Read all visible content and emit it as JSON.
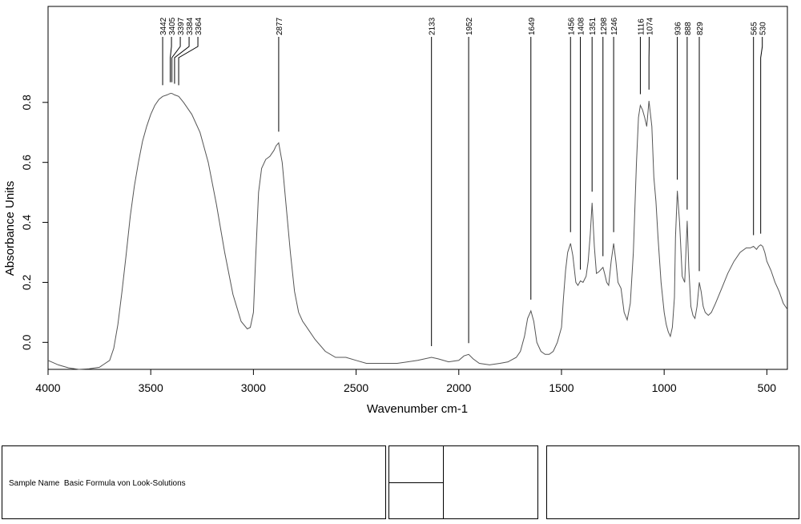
{
  "chart_data": {
    "type": "line",
    "xlabel": "Wavenumber cm-1",
    "ylabel": "Absorbance Units",
    "xlim": [
      4000,
      400
    ],
    "ylim": [
      -0.09,
      1.12
    ],
    "x_ticks": [
      4000,
      3500,
      3000,
      2500,
      2000,
      1500,
      1000,
      500
    ],
    "y_ticks": [
      0.0,
      0.2,
      0.4,
      0.6,
      0.8
    ],
    "x_tick_labels": [
      "4000",
      "3500",
      "3000",
      "2500",
      "2000",
      "1500",
      "1000",
      "500"
    ],
    "y_tick_labels": [
      "0.0",
      "0.2",
      "0.4",
      "0.6",
      "0.8"
    ],
    "grid": false,
    "line_color": "#555555",
    "series": [
      {
        "x": [
          4000,
          3950,
          3900,
          3850,
          3800,
          3750,
          3700,
          3680,
          3660,
          3640,
          3620,
          3600,
          3580,
          3560,
          3540,
          3520,
          3500,
          3480,
          3460,
          3442,
          3420,
          3405,
          3397,
          3384,
          3364,
          3340,
          3300,
          3260,
          3220,
          3180,
          3140,
          3100,
          3060,
          3030,
          3015,
          3000,
          2990,
          2975,
          2960,
          2940,
          2920,
          2900,
          2890,
          2877,
          2860,
          2840,
          2820,
          2800,
          2780,
          2760,
          2750,
          2730,
          2700,
          2650,
          2600,
          2550,
          2500,
          2450,
          2400,
          2300,
          2200,
          2133,
          2100,
          2050,
          2000,
          1975,
          1952,
          1930,
          1900,
          1850,
          1800,
          1760,
          1720,
          1700,
          1680,
          1665,
          1649,
          1635,
          1620,
          1600,
          1580,
          1560,
          1540,
          1520,
          1500,
          1490,
          1480,
          1470,
          1456,
          1445,
          1430,
          1420,
          1408,
          1395,
          1380,
          1370,
          1360,
          1351,
          1340,
          1330,
          1318,
          1305,
          1298,
          1290,
          1280,
          1270,
          1258,
          1246,
          1235,
          1225,
          1210,
          1195,
          1180,
          1165,
          1150,
          1135,
          1125,
          1116,
          1105,
          1095,
          1085,
          1074,
          1060,
          1050,
          1040,
          1030,
          1015,
          1000,
          990,
          980,
          970,
          960,
          950,
          945,
          936,
          925,
          912,
          900,
          888,
          880,
          870,
          860,
          850,
          840,
          829,
          820,
          810,
          800,
          785,
          770,
          750,
          720,
          690,
          660,
          630,
          600,
          580,
          565,
          550,
          540,
          530,
          520,
          510,
          500,
          480,
          460,
          440,
          420,
          400
        ],
        "y": [
          -0.06,
          -0.075,
          -0.085,
          -0.09,
          -0.088,
          -0.083,
          -0.06,
          -0.02,
          0.06,
          0.17,
          0.29,
          0.42,
          0.52,
          0.6,
          0.67,
          0.72,
          0.76,
          0.79,
          0.81,
          0.82,
          0.825,
          0.83,
          0.83,
          0.825,
          0.82,
          0.8,
          0.76,
          0.7,
          0.6,
          0.46,
          0.3,
          0.16,
          0.07,
          0.045,
          0.05,
          0.1,
          0.27,
          0.5,
          0.58,
          0.61,
          0.62,
          0.64,
          0.655,
          0.665,
          0.6,
          0.45,
          0.3,
          0.17,
          0.1,
          0.07,
          0.06,
          0.04,
          0.01,
          -0.03,
          -0.05,
          -0.05,
          -0.06,
          -0.07,
          -0.07,
          -0.07,
          -0.06,
          -0.05,
          -0.055,
          -0.065,
          -0.06,
          -0.045,
          -0.04,
          -0.055,
          -0.07,
          -0.075,
          -0.07,
          -0.065,
          -0.05,
          -0.03,
          0.02,
          0.08,
          0.105,
          0.07,
          0.0,
          -0.03,
          -0.04,
          -0.04,
          -0.03,
          0.0,
          0.05,
          0.15,
          0.24,
          0.3,
          0.33,
          0.29,
          0.2,
          0.19,
          0.205,
          0.2,
          0.22,
          0.27,
          0.36,
          0.465,
          0.32,
          0.23,
          0.235,
          0.245,
          0.25,
          0.23,
          0.2,
          0.19,
          0.27,
          0.33,
          0.27,
          0.2,
          0.18,
          0.1,
          0.075,
          0.13,
          0.3,
          0.6,
          0.75,
          0.79,
          0.775,
          0.75,
          0.72,
          0.805,
          0.72,
          0.55,
          0.47,
          0.35,
          0.2,
          0.1,
          0.06,
          0.035,
          0.02,
          0.05,
          0.15,
          0.35,
          0.505,
          0.4,
          0.22,
          0.2,
          0.405,
          0.25,
          0.12,
          0.09,
          0.08,
          0.12,
          0.2,
          0.17,
          0.12,
          0.1,
          0.09,
          0.1,
          0.13,
          0.18,
          0.23,
          0.27,
          0.3,
          0.315,
          0.315,
          0.32,
          0.31,
          0.32,
          0.325,
          0.32,
          0.3,
          0.27,
          0.24,
          0.2,
          0.17,
          0.13,
          0.11
        ]
      }
    ],
    "annotations": [
      "3442",
      "3405",
      "3397",
      "3384",
      "3364",
      "2877",
      "2133",
      "1952",
      "1649",
      "1456",
      "1408",
      "1351",
      "1298",
      "1246",
      "1116",
      "1074",
      "936",
      "888",
      "829",
      "565",
      "530"
    ]
  },
  "footer": {
    "sample_name_label": "Sample Name",
    "sample_name_value": "Basic Formula von Look-Solutions"
  }
}
